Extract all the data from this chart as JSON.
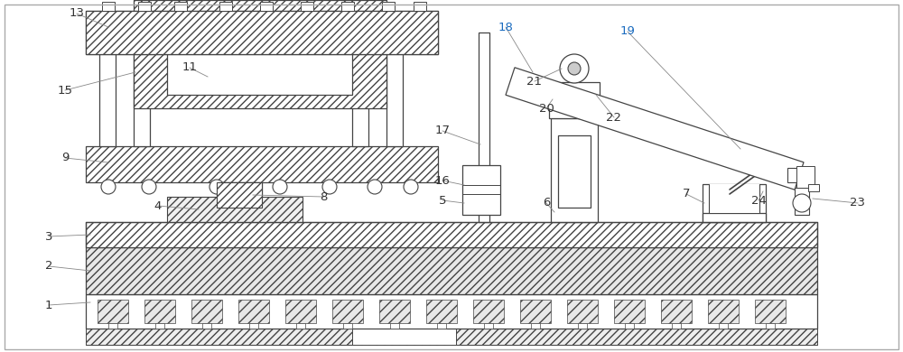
{
  "line_color": "#444444",
  "label_color": "#333333",
  "blue_label_color": "#1a6bbf",
  "fig_width": 10.0,
  "fig_height": 3.9
}
